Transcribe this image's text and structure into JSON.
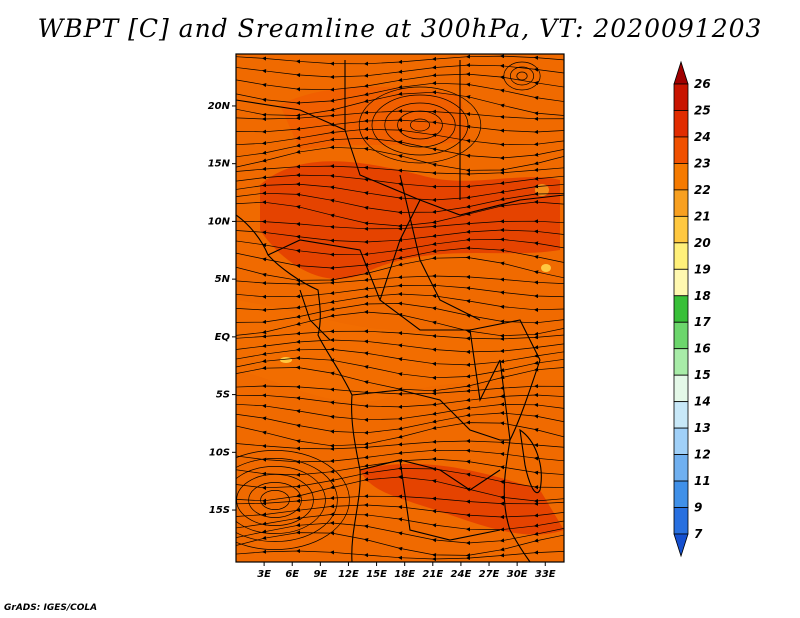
{
  "title": "WBPT [C] and Sreamline at 300hPa, VT: 2020091203",
  "credit": "GrADS: IGES/COLA",
  "map": {
    "variable": "Wet-bulb potential temperature",
    "units": "C",
    "level": "300hPa",
    "lon_range": [
      0,
      35
    ],
    "lat_range": [
      -19.5,
      24.5
    ],
    "lon_ticks": [
      "3E",
      "6E",
      "9E",
      "12E",
      "15E",
      "18E",
      "21E",
      "24E",
      "27E",
      "30E",
      "33E"
    ],
    "lat_ticks": [
      "20N",
      "15N",
      "10N",
      "5N",
      "EQ",
      "5S",
      "10S",
      "15S"
    ],
    "base_color": "#f06a00"
  },
  "colorbar": {
    "levels": [
      "26",
      "25",
      "24",
      "23",
      "22",
      "21",
      "20",
      "19",
      "18",
      "17",
      "16",
      "15",
      "14",
      "13",
      "12",
      "11",
      "9",
      "7"
    ],
    "colors": [
      "#a00000",
      "#c81400",
      "#e12c00",
      "#f05000",
      "#f57a00",
      "#f8a020",
      "#ffc840",
      "#fff07a",
      "#fff8b0",
      "#38c038",
      "#6cd66c",
      "#a8eca8",
      "#e4f8e8",
      "#c8e8f8",
      "#a0d0f8",
      "#70b0f0",
      "#4090e8",
      "#2870e0",
      "#1550d0"
    ]
  }
}
